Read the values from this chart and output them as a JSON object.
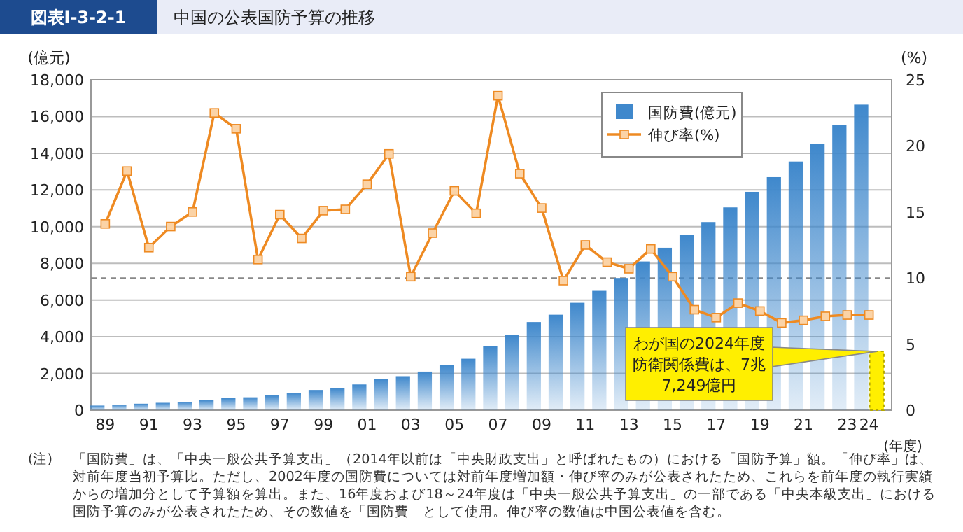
{
  "chart_data": {
    "type": "bar",
    "subtitle": "図表Ⅰ-3-2-1",
    "title": "中国の公表国防予算の推移",
    "xlabel": "(年度)",
    "ylabel": "(億元)",
    "y2label": "(%)",
    "categories": [
      "89",
      null,
      "91",
      null,
      "93",
      null,
      "95",
      null,
      "97",
      null,
      "99",
      null,
      "01",
      null,
      "03",
      null,
      "05",
      null,
      "07",
      null,
      "09",
      null,
      "11",
      null,
      "13",
      null,
      "15",
      null,
      "17",
      null,
      "19",
      null,
      "21",
      null,
      "23",
      "24"
    ],
    "series": [
      {
        "name": "国防費(億元)",
        "color": "#3f88cc",
        "values": [
          250,
          300,
          350,
          400,
          450,
          550,
          650,
          700,
          800,
          950,
          1100,
          1200,
          1400,
          1700,
          1850,
          2100,
          2450,
          2800,
          3500,
          4100,
          4800,
          5200,
          5850,
          6500,
          7200,
          8100,
          8850,
          9550,
          10250,
          11050,
          11900,
          12700,
          13550,
          14500,
          15550,
          16650
        ]
      },
      {
        "type": "bar",
        "color": "#ffef00",
        "values": [
          null,
          null,
          null,
          null,
          null,
          null,
          null,
          null,
          null,
          null,
          null,
          null,
          null,
          null,
          null,
          null,
          null,
          null,
          null,
          null,
          null,
          null,
          null,
          null,
          null,
          null,
          null,
          null,
          null,
          null,
          null,
          null,
          null,
          null,
          null,
          3200
        ]
      },
      {
        "name": "伸び率(%)",
        "type": "line",
        "axis": "y2",
        "color": "#ee8a22",
        "marker": "square",
        "values": [
          14.1,
          18.1,
          12.3,
          13.9,
          15.0,
          22.5,
          21.3,
          11.4,
          14.8,
          13.0,
          15.1,
          15.2,
          17.1,
          19.4,
          10.1,
          13.4,
          16.6,
          14.9,
          23.8,
          17.9,
          15.3,
          9.8,
          12.5,
          11.2,
          10.7,
          12.2,
          10.1,
          7.6,
          7.0,
          8.1,
          7.5,
          6.6,
          6.8,
          7.1,
          7.2,
          7.2
        ]
      }
    ],
    "ylim": [
      0,
      18000
    ],
    "yticks": [
      0,
      {
        "value": 2000,
        "label": "2,000"
      },
      {
        "value": 4000,
        "label": "4,000"
      },
      {
        "value": 6000,
        "label": "6,000"
      },
      {
        "value": 8000,
        "label": "8,000"
      },
      {
        "value": 10000,
        "label": "10,000"
      },
      {
        "value": 12000,
        "label": "12,000"
      },
      {
        "value": 14000,
        "label": "14,000"
      },
      {
        "value": 16000,
        "label": "16,000"
      },
      {
        "value": 18000,
        "label": "18,000"
      }
    ],
    "y2lim": [
      0,
      25
    ],
    "y2ticks": [
      0,
      5,
      10,
      15,
      20,
      25
    ],
    "ref_lines": [
      {
        "axis": "y2",
        "value": 10,
        "color": "#888888",
        "line_style": "dashed"
      }
    ],
    "annotations": [
      "わが国の2024年度防衛関係費は、7兆7,249億円",
      "(注)",
      "「国防費」は、「中央一般公共予算支出」（2014年以前は「中央財政支出」と呼ばれたもの）における「国防予算」額。「伸び率」は、対前年度当初予算比。ただし、2002年度の国防費については対前年度増加額・伸び率のみが公表されたため、これらを前年度の執行実績からの増加分として予算額を算出。また、16年度および18～24年度は「中央一般公共予算支出」の一部である「中央本級支出」における国防予算のみが公表されたため、その数値を「国防費」として使用。伸び率の数値は中国公表値を含む。"
    ],
    "grid": "y",
    "legend": "top right"
  }
}
